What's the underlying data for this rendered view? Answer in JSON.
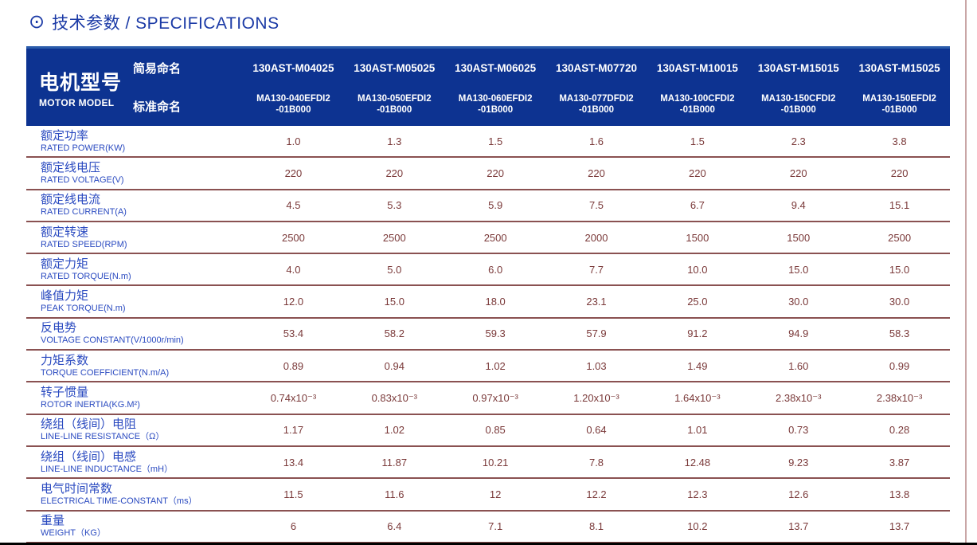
{
  "page": {
    "title": "技术参数 / SPECIFICATIONS",
    "title_icon": "⊙"
  },
  "colors": {
    "header_bg": "#0d3391",
    "title_blue": "#1b3aa6",
    "label_blue": "#2a4ac0",
    "value_maroon": "#7a3939",
    "row_divider": "#8a5151",
    "right_rule": "#c9a6a6"
  },
  "table": {
    "header": {
      "motor_model_zh": "电机型号",
      "motor_model_en": "MOTOR MODEL",
      "simple_name_label": "简易命名",
      "standard_name_label": "标准命名",
      "columns": [
        {
          "simple": "130AST-M04025",
          "standard_line1": "MA130-040EFDI2",
          "standard_line2": "-01B000"
        },
        {
          "simple": "130AST-M05025",
          "standard_line1": "MA130-050EFDI2",
          "standard_line2": "-01B000"
        },
        {
          "simple": "130AST-M06025",
          "standard_line1": "MA130-060EFDI2",
          "standard_line2": "-01B000"
        },
        {
          "simple": "130AST-M07720",
          "standard_line1": "MA130-077DFDI2",
          "standard_line2": "-01B000"
        },
        {
          "simple": "130AST-M10015",
          "standard_line1": "MA130-100CFDI2",
          "standard_line2": "-01B000"
        },
        {
          "simple": "130AST-M15015",
          "standard_line1": "MA130-150CFDI2",
          "standard_line2": "-01B000"
        },
        {
          "simple": "130AST-M15025",
          "standard_line1": "MA130-150EFDI2",
          "standard_line2": "-01B000"
        }
      ]
    },
    "rows": [
      {
        "label_zh": "额定功率",
        "label_en": "RATED POWER(KW)",
        "values": [
          "1.0",
          "1.3",
          "1.5",
          "1.6",
          "1.5",
          "2.3",
          "3.8"
        ]
      },
      {
        "label_zh": "额定线电压",
        "label_en": "RATED VOLTAGE(V)",
        "values": [
          "220",
          "220",
          "220",
          "220",
          "220",
          "220",
          "220"
        ]
      },
      {
        "label_zh": "额定线电流",
        "label_en": "RATED CURRENT(A)",
        "values": [
          "4.5",
          "5.3",
          "5.9",
          "7.5",
          "6.7",
          "9.4",
          "15.1"
        ]
      },
      {
        "label_zh": "额定转速",
        "label_en": "RATED SPEED(RPM)",
        "values": [
          "2500",
          "2500",
          "2500",
          "2000",
          "1500",
          "1500",
          "2500"
        ]
      },
      {
        "label_zh": "额定力矩",
        "label_en": "RATED TORQUE(N.m)",
        "values": [
          "4.0",
          "5.0",
          "6.0",
          "7.7",
          "10.0",
          "15.0",
          "15.0"
        ]
      },
      {
        "label_zh": "峰值力矩",
        "label_en": "PEAK TORQUE(N.m)",
        "values": [
          "12.0",
          "15.0",
          "18.0",
          "23.1",
          "25.0",
          "30.0",
          "30.0"
        ]
      },
      {
        "label_zh": "反电势",
        "label_en": "VOLTAGE CONSTANT(V/1000r/min)",
        "values": [
          "53.4",
          "58.2",
          "59.3",
          "57.9",
          "91.2",
          "94.9",
          "58.3"
        ]
      },
      {
        "label_zh": "力矩系数",
        "label_en": "TORQUE COEFFICIENT(N.m/A)",
        "values": [
          "0.89",
          "0.94",
          "1.02",
          "1.03",
          "1.49",
          "1.60",
          "0.99"
        ]
      },
      {
        "label_zh": "转子惯量",
        "label_en": "ROTOR INERTIA(KG.M²)",
        "values": [
          "0.74x10⁻³",
          "0.83x10⁻³",
          "0.97x10⁻³",
          "1.20x10⁻³",
          "1.64x10⁻³",
          "2.38x10⁻³",
          "2.38x10⁻³"
        ]
      },
      {
        "label_zh": "绕组（线间）电阻",
        "label_en": "LINE-LINE RESISTANCE（Ω）",
        "values": [
          "1.17",
          "1.02",
          "0.85",
          "0.64",
          "1.01",
          "0.73",
          "0.28"
        ]
      },
      {
        "label_zh": "绕组（线间）电感",
        "label_en": "LINE-LINE INDUCTANCE（mH）",
        "values": [
          "13.4",
          "11.87",
          "10.21",
          "7.8",
          "12.48",
          "9.23",
          "3.87"
        ]
      },
      {
        "label_zh": "电气时间常数",
        "label_en": "ELECTRICAL TIME-CONSTANT（ms）",
        "values": [
          "11.5",
          "11.6",
          "12",
          "12.2",
          "12.3",
          "12.6",
          "13.8"
        ]
      },
      {
        "label_zh": "重量",
        "label_en": "WEIGHT（KG）",
        "values": [
          "6",
          "6.4",
          "7.1",
          "8.1",
          "10.2",
          "13.7",
          "13.7"
        ]
      }
    ]
  }
}
